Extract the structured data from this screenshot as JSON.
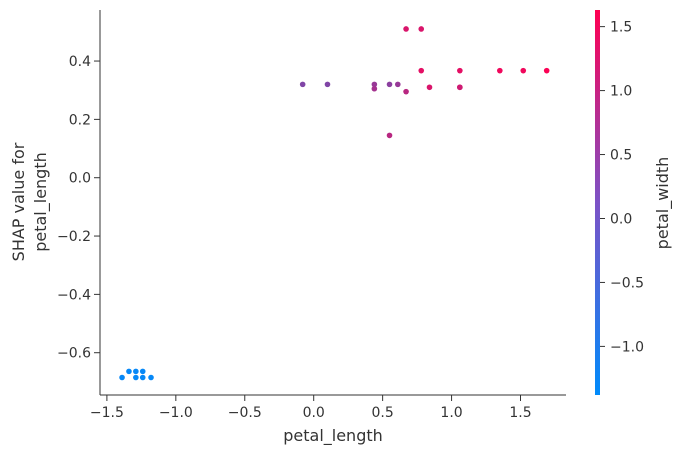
{
  "chart_data": {
    "type": "scatter",
    "xlabel": "petal_length",
    "ylabel_lines": [
      "SHAP value for",
      "petal_length"
    ],
    "xlim": [
      -1.55,
      1.83
    ],
    "ylim": [
      -0.745,
      0.575
    ],
    "xticks": [
      -1.5,
      -1.0,
      -0.5,
      0.0,
      0.5,
      1.0,
      1.5
    ],
    "xtick_labels": [
      "−1.5",
      "−1.0",
      "−0.5",
      "0.0",
      "0.5",
      "1.0",
      "1.5"
    ],
    "yticks": [
      -0.6,
      -0.4,
      -0.2,
      0.0,
      0.2,
      0.4
    ],
    "ytick_labels": [
      "−0.6",
      "−0.4",
      "−0.2",
      "0.0",
      "0.2",
      "0.4"
    ],
    "colorbar": {
      "label": "petal_width",
      "range": [
        -1.38,
        1.63
      ],
      "ticks": [
        -1.0,
        -0.5,
        0.0,
        0.5,
        1.0,
        1.5
      ],
      "tick_labels": [
        "−1.0",
        "−0.5",
        "0.0",
        "0.5",
        "1.0",
        "1.5"
      ],
      "colors": [
        "#008bfb",
        "#ff0052"
      ]
    },
    "points": [
      {
        "x": -1.39,
        "y": -0.685,
        "c": -1.31
      },
      {
        "x": -1.34,
        "y": -0.664,
        "c": -1.31
      },
      {
        "x": -1.29,
        "y": -0.664,
        "c": -1.31
      },
      {
        "x": -1.29,
        "y": -0.685,
        "c": -1.31
      },
      {
        "x": -1.24,
        "y": -0.664,
        "c": -1.31
      },
      {
        "x": -1.24,
        "y": -0.685,
        "c": -1.31
      },
      {
        "x": -1.18,
        "y": -0.685,
        "c": -1.31
      },
      {
        "x": -0.08,
        "y": 0.32,
        "c": 0.13
      },
      {
        "x": 0.1,
        "y": 0.32,
        "c": 0.13
      },
      {
        "x": 0.44,
        "y": 0.32,
        "c": 0.4
      },
      {
        "x": 0.44,
        "y": 0.305,
        "c": 0.55
      },
      {
        "x": 0.55,
        "y": 0.32,
        "c": 0.26
      },
      {
        "x": 0.55,
        "y": 0.145,
        "c": 0.79
      },
      {
        "x": 0.61,
        "y": 0.32,
        "c": 0.4
      },
      {
        "x": 0.67,
        "y": 0.295,
        "c": 0.79
      },
      {
        "x": 0.67,
        "y": 0.51,
        "c": 1.18
      },
      {
        "x": 0.78,
        "y": 0.51,
        "c": 1.18
      },
      {
        "x": 0.78,
        "y": 0.367,
        "c": 1.31
      },
      {
        "x": 0.84,
        "y": 0.31,
        "c": 1.18
      },
      {
        "x": 1.06,
        "y": 0.31,
        "c": 1.18
      },
      {
        "x": 1.06,
        "y": 0.31,
        "c": 1.05
      },
      {
        "x": 1.06,
        "y": 0.367,
        "c": 1.31
      },
      {
        "x": 1.35,
        "y": 0.367,
        "c": 1.45
      },
      {
        "x": 1.52,
        "y": 0.367,
        "c": 1.45
      },
      {
        "x": 1.69,
        "y": 0.367,
        "c": 1.58
      }
    ]
  }
}
